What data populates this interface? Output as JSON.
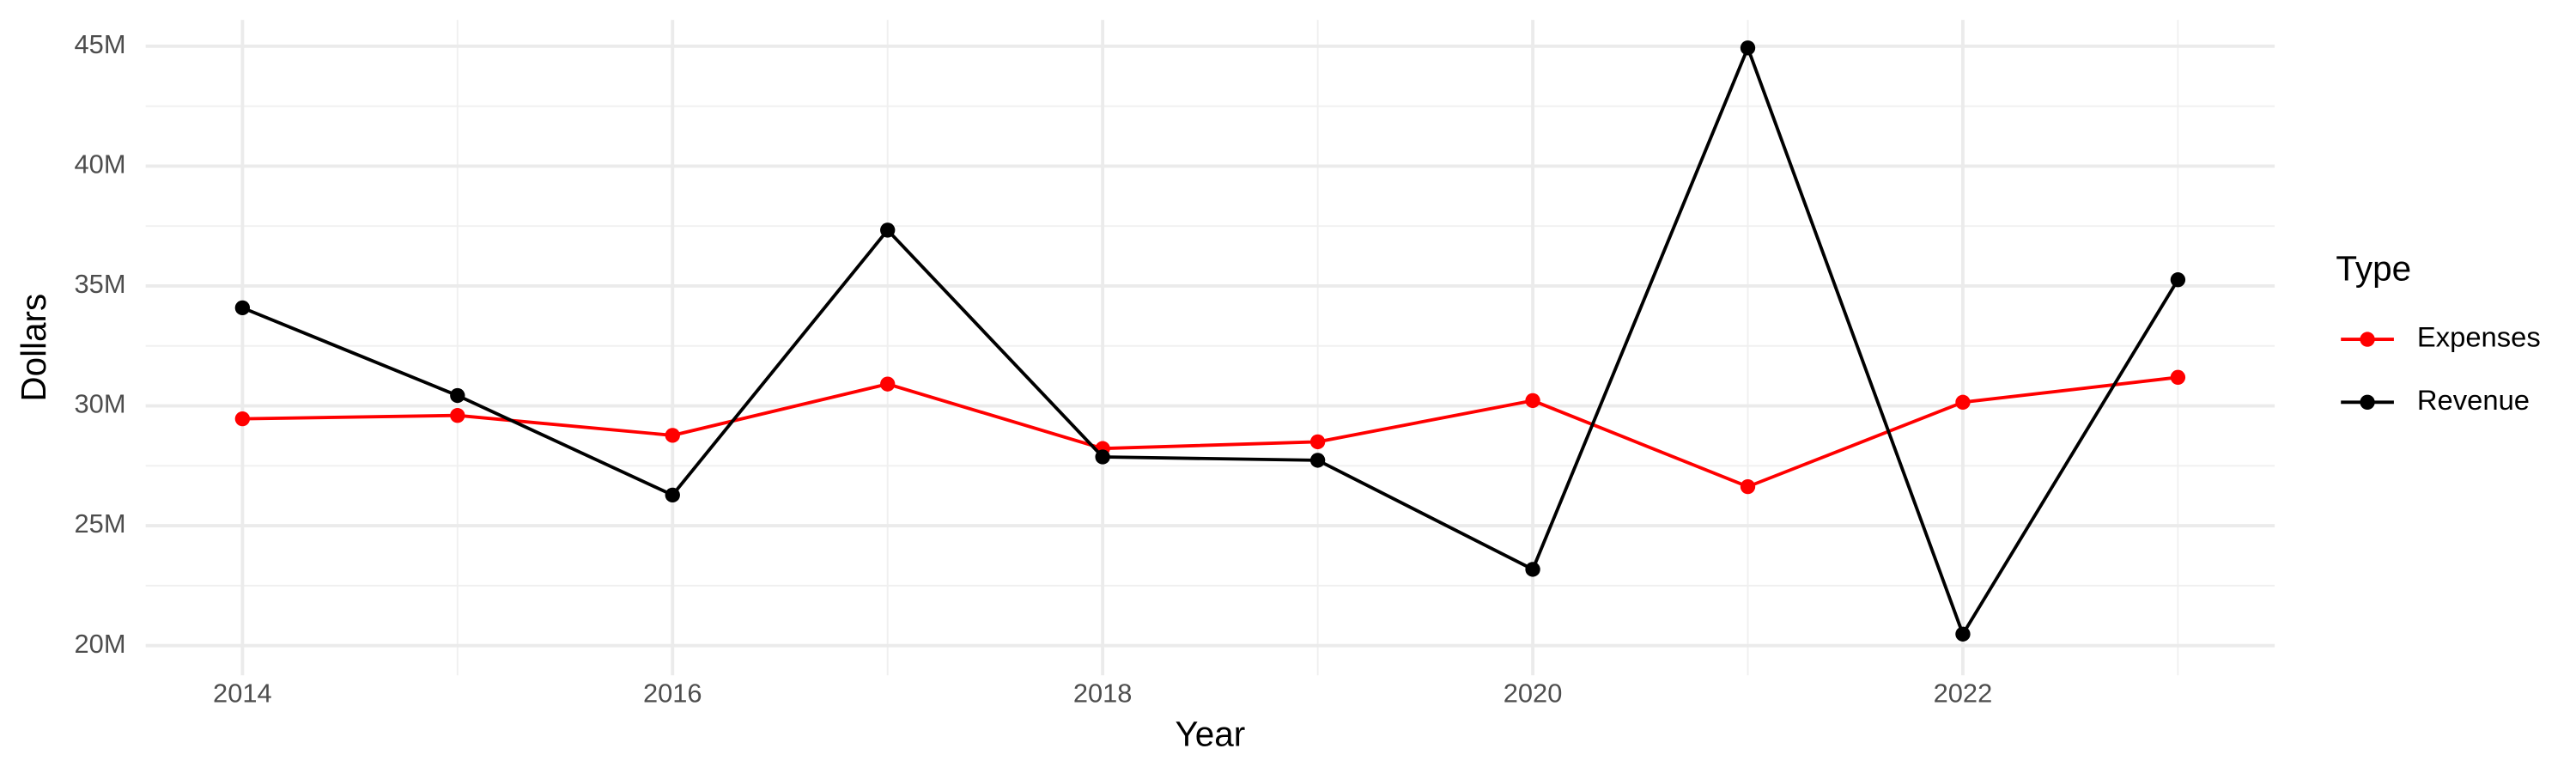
{
  "chart_data": {
    "type": "line",
    "x_label": "Year",
    "y_label": "Dollars",
    "legend_title": "Type",
    "x": [
      2014,
      2015,
      2016,
      2017,
      2018,
      2019,
      2020,
      2021,
      2022,
      2023
    ],
    "series": [
      {
        "name": "Expenses",
        "color": "#ff0000",
        "values": [
          29460000,
          29600000,
          28770000,
          30910000,
          28220000,
          28500000,
          30220000,
          26630000,
          30150000,
          31190000
        ]
      },
      {
        "name": "Revenue",
        "color": "#000000",
        "values": [
          34090000,
          30430000,
          26280000,
          37330000,
          27870000,
          27730000,
          23180000,
          44930000,
          20480000,
          35260000
        ]
      }
    ],
    "xlim": [
      2013.55,
      2023.45
    ],
    "xticks": [
      2014,
      2016,
      2018,
      2020,
      2022
    ],
    "ylim": [
      18760000,
      46100000
    ],
    "yticks": [
      {
        "value": 20000000,
        "label": "20M"
      },
      {
        "value": 25000000,
        "label": "25M"
      },
      {
        "value": 30000000,
        "label": "30M"
      },
      {
        "value": 35000000,
        "label": "35M"
      },
      {
        "value": 40000000,
        "label": "40M"
      },
      {
        "value": 45000000,
        "label": "45M"
      }
    ],
    "grid": true,
    "legend": "right"
  }
}
